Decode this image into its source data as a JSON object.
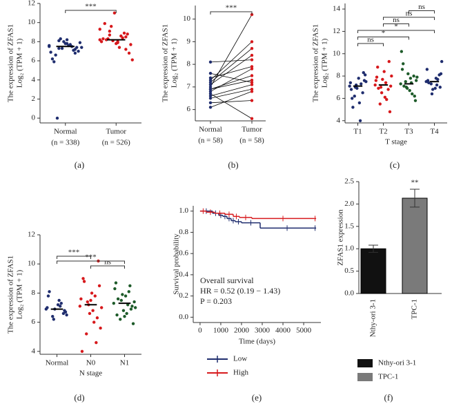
{
  "chart_data": [
    {
      "type": "strip",
      "panel_label": "(a)",
      "ylabel": [
        "The expression of ZFAS1",
        "Log₂ (TPM + 1)"
      ],
      "categories": [
        "Normal",
        "Tumor"
      ],
      "category_notes": [
        "(n = 338)",
        "(n = 526)"
      ],
      "colors": [
        "#1f2d6e",
        "#d7191c"
      ],
      "values": [
        [
          7.5,
          7.2,
          7.8,
          8.1,
          6.9,
          7.4,
          7.6,
          8.3,
          6.2,
          7.0,
          7.7,
          7.3,
          5.9,
          7.9,
          7.5,
          8.0,
          6.6,
          7.4,
          7.1,
          7.8,
          0.0,
          7.6,
          6.8,
          8.2,
          7.3
        ],
        [
          8.2,
          8.5,
          7.9,
          9.1,
          8.0,
          8.8,
          7.4,
          9.6,
          8.3,
          6.8,
          8.6,
          8.1,
          9.9,
          7.7,
          8.4,
          11.0,
          8.2,
          6.1,
          8.9,
          7.8,
          8.3,
          9.3,
          7.2,
          8.0,
          8.7
        ]
      ],
      "medians": [
        7.5,
        8.2
      ],
      "comparisons": [
        {
          "from": "Normal",
          "to": "Tumor",
          "label": "***"
        }
      ],
      "ylim": [
        -0.5,
        12
      ],
      "yticks": [
        0,
        2,
        4,
        6,
        8,
        10,
        12
      ]
    },
    {
      "type": "paired",
      "panel_label": "(b)",
      "ylabel": [
        "The expression of ZFAS1",
        "Log₂ (TPM + 1)"
      ],
      "categories": [
        "Normal",
        "Tumor"
      ],
      "category_notes": [
        "(n = 58)",
        "(n = 58)"
      ],
      "colors": [
        "#1f2d6e",
        "#d7191c"
      ],
      "values": [
        [
          6.9,
          7.2,
          6.5,
          7.6,
          6.8,
          7.0,
          6.3,
          8.1,
          7.4,
          6.7,
          7.1,
          6.1,
          6.9,
          7.3,
          6.6
        ],
        [
          7.5,
          8.7,
          6.9,
          7.2,
          7.8,
          10.2,
          6.4,
          8.2,
          7.9,
          5.6,
          8.4,
          6.8,
          7.3,
          9.0,
          7.1
        ]
      ],
      "comparisons": [
        {
          "from": "Normal",
          "to": "Tumor",
          "label": "***"
        }
      ],
      "ylim": [
        5.5,
        10.6
      ],
      "yticks": [
        6,
        7,
        8,
        9,
        10
      ]
    },
    {
      "type": "strip",
      "panel_label": "(c)",
      "ylabel": [
        "The expression of ZFAS1",
        "Log₂ (TPM + 1)"
      ],
      "xlabel": "T stage",
      "categories": [
        "T1",
        "T2",
        "T3",
        "T4"
      ],
      "colors": [
        "#1f2d6e",
        "#d7191c",
        "#1e5b2a",
        "#1f2d6e"
      ],
      "values": [
        [
          7.1,
          6.5,
          7.8,
          6.2,
          7.4,
          8.3,
          5.6,
          7.0,
          6.8,
          7.6,
          4.0,
          7.2,
          6.0,
          8.1,
          7.3,
          6.9,
          5.2,
          7.5
        ],
        [
          7.2,
          6.8,
          8.4,
          5.5,
          7.6,
          9.3,
          6.1,
          7.0,
          7.9,
          4.8,
          7.4,
          6.5,
          8.8,
          7.1,
          5.9,
          7.7,
          6.9,
          8.0
        ],
        [
          7.3,
          8.0,
          6.7,
          7.5,
          10.2,
          6.2,
          7.8,
          7.0,
          8.6,
          5.8,
          7.4,
          6.9,
          9.1,
          7.6,
          6.4,
          8.2,
          7.1,
          7.9
        ],
        [
          7.5,
          8.1,
          6.9,
          7.3,
          8.6,
          7.0,
          7.8,
          6.4,
          7.6,
          8.2,
          7.2,
          6.8,
          7.4,
          9.3,
          7.7
        ]
      ],
      "medians": [
        7.1,
        7.2,
        7.3,
        7.5
      ],
      "comparisons": [
        {
          "from": "T1",
          "to": "T2",
          "label": "ns"
        },
        {
          "from": "T1",
          "to": "T3",
          "label": "*"
        },
        {
          "from": "T1",
          "to": "T4",
          "label": "*"
        },
        {
          "from": "T2",
          "to": "T3",
          "label": "ns"
        },
        {
          "from": "T2",
          "to": "T4",
          "label": "ns"
        },
        {
          "from": "T3",
          "to": "T4",
          "label": "ns"
        }
      ],
      "ylim": [
        3.8,
        14.5
      ],
      "yticks": [
        4,
        6,
        8,
        10,
        12,
        14
      ]
    },
    {
      "type": "strip",
      "panel_label": "(d)",
      "ylabel": [
        "The expression of ZFAS1",
        "Log₂ (TPM + 1)"
      ],
      "xlabel": "N stage",
      "categories": [
        "Normal",
        "N0",
        "N1"
      ],
      "colors": [
        "#1f2d6e",
        "#d7191c",
        "#1e5b2a"
      ],
      "values": [
        [
          6.9,
          6.6,
          7.2,
          6.4,
          7.0,
          6.8,
          7.5,
          6.2,
          7.8,
          6.7,
          7.1,
          6.9,
          8.1,
          6.5,
          7.3
        ],
        [
          7.1,
          6.3,
          8.0,
          5.2,
          7.6,
          10.2,
          6.8,
          7.4,
          4.0,
          8.5,
          6.0,
          7.2,
          9.0,
          5.6,
          7.8,
          6.6,
          8.8,
          7.0,
          4.6,
          7.5
        ],
        [
          7.3,
          6.9,
          7.8,
          6.2,
          8.3,
          7.1,
          6.6,
          7.5,
          8.7,
          5.9,
          7.2,
          7.9,
          6.5,
          7.4,
          8.1,
          6.8,
          7.6,
          7.0,
          8.5,
          6.4
        ]
      ],
      "medians": [
        6.9,
        7.2,
        7.3
      ],
      "comparisons": [
        {
          "from": "Normal",
          "to": "N0",
          "label": "***"
        },
        {
          "from": "Normal",
          "to": "N1",
          "label": "***"
        },
        {
          "from": "N0",
          "to": "N1",
          "label": "ns"
        }
      ],
      "ylim": [
        3.8,
        12
      ],
      "yticks": [
        4,
        6,
        8,
        10,
        12
      ]
    },
    {
      "type": "survival",
      "panel_label": "(e)",
      "ylabel": "Survival probability",
      "xlabel": "Time (days)",
      "annotations": [
        "Overall survival",
        "HR = 0.52 (0.19 − 1.43)",
        "P = 0.203"
      ],
      "series": [
        {
          "name": "Low",
          "color": "#1f2d6e",
          "x": [
            0,
            600,
            900,
            1100,
            1300,
            1500,
            1700,
            2000,
            2900,
            5500
          ],
          "values": [
            1,
            0.98,
            0.96,
            0.95,
            0.93,
            0.91,
            0.9,
            0.89,
            0.84,
            0.84
          ]
        },
        {
          "name": "High",
          "color": "#d7191c",
          "x": [
            0,
            300,
            700,
            1200,
            1600,
            1900,
            2500,
            5500
          ],
          "values": [
            1,
            0.99,
            0.98,
            0.97,
            0.95,
            0.94,
            0.93,
            0.93
          ]
        }
      ],
      "xlim": [
        -330,
        5830
      ],
      "xticks": [
        0,
        1000,
        2000,
        3000,
        4000,
        5000
      ],
      "ylim": [
        -0.05,
        1.05
      ],
      "yticks": [
        {
          "value": 0,
          "label": "0.0"
        },
        0.2,
        0.4,
        0.6,
        0.8,
        {
          "value": 1,
          "label": "1.0"
        }
      ]
    },
    {
      "type": "bar",
      "panel_label": "(f)",
      "ylabel": "ZFAS1 expression",
      "categories": [
        "Nthy-ori 3-1",
        "TPC-1"
      ],
      "values": [
        1.0,
        2.13
      ],
      "errors": [
        0.08,
        0.2
      ],
      "significance": [
        null,
        "**"
      ],
      "series": [
        {
          "name": "Nthy-ori 3-1",
          "color": "#111111"
        },
        {
          "name": "TPC-1",
          "color": "#7a7a7a"
        }
      ],
      "ylim": [
        0,
        2.5
      ],
      "yticks": [
        {
          "value": 0,
          "label": "0.0"
        },
        0.5,
        {
          "value": 1,
          "label": "1.0"
        },
        1.5,
        {
          "value": 2,
          "label": "2.0"
        },
        2.5
      ]
    }
  ]
}
